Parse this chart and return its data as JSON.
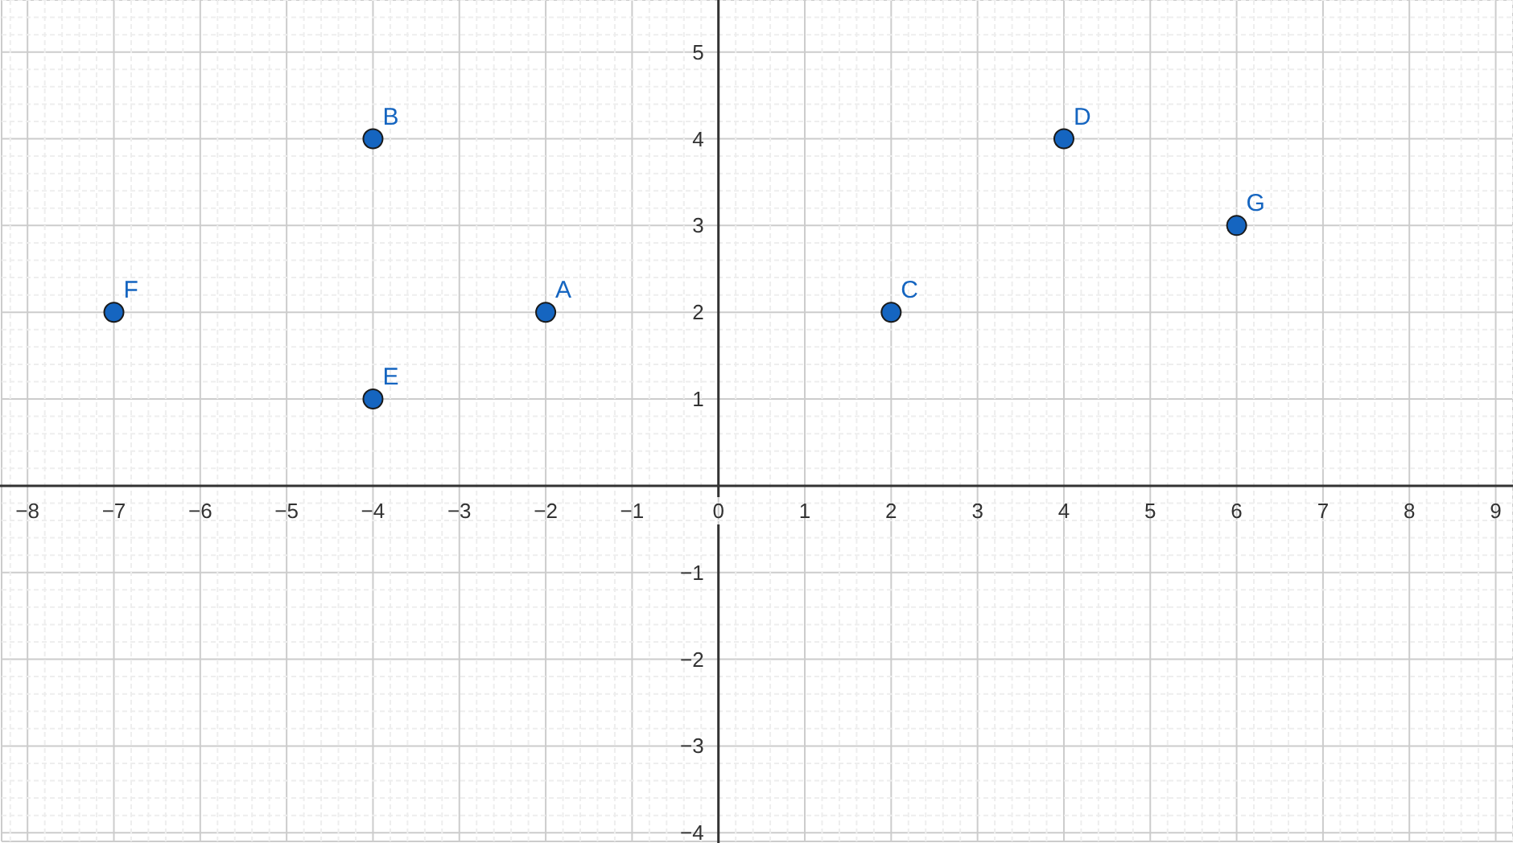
{
  "chart_data": {
    "type": "scatter",
    "x": [
      -2,
      -4,
      2,
      4,
      -4,
      -7,
      6
    ],
    "series": [
      {
        "color": "#1565c0",
        "values": [
          2,
          4,
          2,
          4,
          1,
          2,
          3
        ]
      }
    ],
    "marker": "circle",
    "grid": true,
    "xlim": [
      -8.3,
      9.2
    ],
    "ylim": [
      -4.1,
      5.6
    ],
    "xticks": [
      {
        "value": -8,
        "label": "−8"
      },
      {
        "value": -7,
        "label": "−7"
      },
      {
        "value": -6,
        "label": "−6"
      },
      {
        "value": -5,
        "label": "−5"
      },
      {
        "value": -4,
        "label": "−4"
      },
      {
        "value": -3,
        "label": "−3"
      },
      {
        "value": -2,
        "label": "−2"
      },
      {
        "value": -1,
        "label": "−1"
      },
      0,
      1,
      2,
      3,
      4,
      5,
      6,
      7,
      8,
      9
    ],
    "yticks": [
      {
        "value": -4,
        "label": "−4"
      },
      {
        "value": -3,
        "label": "−3"
      },
      {
        "value": -2,
        "label": "−2"
      },
      {
        "value": -1,
        "label": "−1"
      },
      1,
      2,
      3,
      4,
      5
    ],
    "annotations": [
      {
        "text": "A",
        "x": -2,
        "y": 2
      },
      {
        "text": "B",
        "x": -4,
        "y": 4
      },
      {
        "text": "C",
        "x": 2,
        "y": 2
      },
      {
        "text": "D",
        "x": 4,
        "y": 4
      },
      {
        "text": "E",
        "x": -4,
        "y": 1
      },
      {
        "text": "F",
        "x": -7,
        "y": 2
      },
      {
        "text": "G",
        "x": 6,
        "y": 3
      }
    ]
  }
}
